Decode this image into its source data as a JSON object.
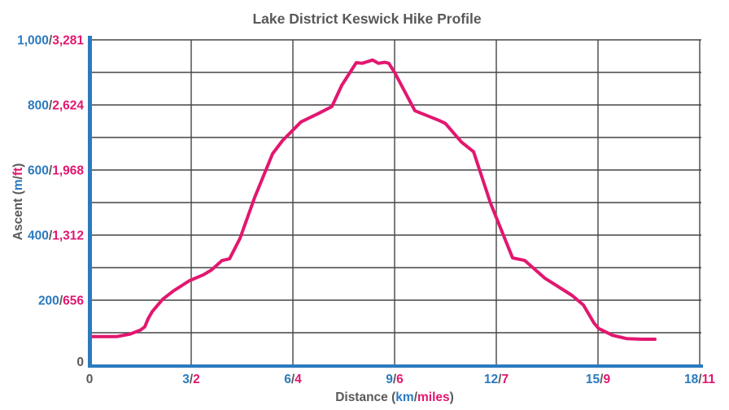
{
  "title": "Lake District Keswick Hike Profile",
  "colors": {
    "metric_blue": "#2A7ABF",
    "imperial_pink": "#E2176F",
    "text_gray": "#595959",
    "gridline_gray": "#454545",
    "axis_blue": "#2A7ABF",
    "line_pink": "#E2176F",
    "background": "#FFFFFF"
  },
  "chart_data": {
    "type": "line",
    "title": "Lake District Keswick Hike Profile",
    "xlabel": "Distance (km/miles)",
    "ylabel": "Ascent (m/ft)",
    "xlabel_parts": [
      {
        "text": "Distance (",
        "color": "text_gray"
      },
      {
        "text": "km",
        "color": "metric_blue"
      },
      {
        "text": "/",
        "color": "text_gray"
      },
      {
        "text": "miles",
        "color": "imperial_pink"
      },
      {
        "text": ")",
        "color": "text_gray"
      }
    ],
    "ylabel_parts": [
      {
        "text": "Ascent (",
        "color": "text_gray"
      },
      {
        "text": "m",
        "color": "metric_blue"
      },
      {
        "text": "/",
        "color": "text_gray"
      },
      {
        "text": "ft",
        "color": "imperial_pink"
      },
      {
        "text": ")",
        "color": "text_gray"
      }
    ],
    "xlim_km": [
      0,
      18
    ],
    "ylim_m": [
      0,
      1000
    ],
    "grid": {
      "visible": true,
      "x_step_km": 3,
      "y_step_m": 100
    },
    "legend": "none",
    "x_ticks": [
      {
        "km": 0,
        "label_metric": "0",
        "label_imperial": null
      },
      {
        "km": 3,
        "label_metric": "3",
        "label_imperial": "2"
      },
      {
        "km": 6,
        "label_metric": "6",
        "label_imperial": "4"
      },
      {
        "km": 9,
        "label_metric": "9",
        "label_imperial": "6"
      },
      {
        "km": 12,
        "label_metric": "12",
        "label_imperial": "7"
      },
      {
        "km": 15,
        "label_metric": "15",
        "label_imperial": "9"
      },
      {
        "km": 18,
        "label_metric": "18",
        "label_imperial": "11"
      }
    ],
    "y_ticks": [
      {
        "m": 0,
        "label_metric": "0",
        "label_imperial": null
      },
      {
        "m": 200,
        "label_metric": "200",
        "label_imperial": "656"
      },
      {
        "m": 400,
        "label_metric": "400",
        "label_imperial": "1,312"
      },
      {
        "m": 600,
        "label_metric": "600",
        "label_imperial": "1,968"
      },
      {
        "m": 800,
        "label_metric": "800",
        "label_imperial": "2,624"
      },
      {
        "m": 1000,
        "label_metric": "1,000",
        "label_imperial": "3,281"
      }
    ],
    "series": [
      {
        "name": "elevation-profile",
        "color": "#E2176F",
        "points_km_m": [
          [
            0.0,
            88
          ],
          [
            0.8,
            88
          ],
          [
            1.2,
            96
          ],
          [
            1.5,
            108
          ],
          [
            1.63,
            118
          ],
          [
            1.73,
            143
          ],
          [
            1.85,
            165
          ],
          [
            2.16,
            203
          ],
          [
            2.47,
            228
          ],
          [
            2.95,
            260
          ],
          [
            3.36,
            278
          ],
          [
            3.6,
            293
          ],
          [
            3.91,
            322
          ],
          [
            4.13,
            327
          ],
          [
            4.44,
            390
          ],
          [
            4.87,
            515
          ],
          [
            5.4,
            650
          ],
          [
            5.69,
            690
          ],
          [
            6.24,
            748
          ],
          [
            6.72,
            772
          ],
          [
            7.15,
            795
          ],
          [
            7.44,
            860
          ],
          [
            7.87,
            930
          ],
          [
            8.04,
            928
          ],
          [
            8.35,
            938
          ],
          [
            8.52,
            928
          ],
          [
            8.71,
            931
          ],
          [
            8.83,
            928
          ],
          [
            9.0,
            900
          ],
          [
            9.6,
            782
          ],
          [
            10.32,
            752
          ],
          [
            10.5,
            743
          ],
          [
            10.97,
            686
          ],
          [
            11.33,
            656
          ],
          [
            11.83,
            498
          ],
          [
            12.48,
            330
          ],
          [
            12.84,
            322
          ],
          [
            13.44,
            267
          ],
          [
            14.23,
            215
          ],
          [
            14.57,
            185
          ],
          [
            14.88,
            130
          ],
          [
            15.02,
            113
          ],
          [
            15.43,
            92
          ],
          [
            15.84,
            82
          ],
          [
            16.3,
            80
          ],
          [
            16.68,
            80
          ]
        ]
      }
    ]
  }
}
